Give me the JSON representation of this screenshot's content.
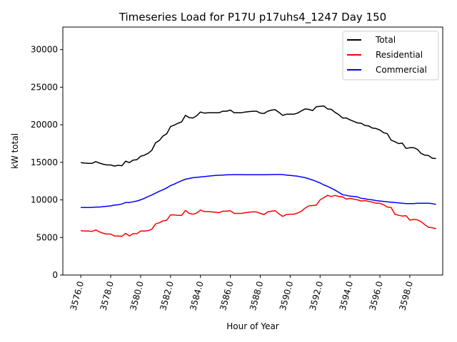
{
  "chart_data": {
    "type": "line",
    "title": "Timeseries Load for P17U p17uhs4_1247  Day 150",
    "xlabel": "Hour of Year",
    "ylabel": "kW total",
    "xlim": [
      3574.8,
      3600.2
    ],
    "ylim": [
      0,
      33000
    ],
    "xticks": [
      3576,
      3578,
      3580,
      3582,
      3584,
      3586,
      3588,
      3590,
      3592,
      3594,
      3596,
      3598
    ],
    "xtick_labels": [
      "3576.0",
      "3578.0",
      "3580.0",
      "3582.0",
      "3584.0",
      "3586.0",
      "3588.0",
      "3590.0",
      "3592.0",
      "3594.0",
      "3596.0",
      "3598.0"
    ],
    "yticks": [
      0,
      5000,
      10000,
      15000,
      20000,
      25000,
      30000
    ],
    "ytick_labels": [
      "0",
      "5000",
      "10000",
      "15000",
      "20000",
      "25000",
      "30000"
    ],
    "grid": false,
    "legend_position": "top-right",
    "x": [
      3576.0,
      3576.25,
      3576.5,
      3576.75,
      3577.0,
      3577.25,
      3577.5,
      3577.75,
      3578.0,
      3578.25,
      3578.5,
      3578.75,
      3579.0,
      3579.25,
      3579.5,
      3579.75,
      3580.0,
      3580.25,
      3580.5,
      3580.75,
      3581.0,
      3581.25,
      3581.5,
      3581.75,
      3582.0,
      3582.25,
      3582.5,
      3582.75,
      3583.0,
      3583.25,
      3583.5,
      3583.75,
      3584.0,
      3584.25,
      3584.5,
      3584.75,
      3585.0,
      3585.25,
      3585.5,
      3585.75,
      3586.0,
      3586.25,
      3586.5,
      3586.75,
      3587.0,
      3587.25,
      3587.5,
      3587.75,
      3588.0,
      3588.25,
      3588.5,
      3588.75,
      3589.0,
      3589.25,
      3589.5,
      3589.75,
      3590.0,
      3590.25,
      3590.5,
      3590.75,
      3591.0,
      3591.25,
      3591.5,
      3591.75,
      3592.0,
      3592.25,
      3592.5,
      3592.75,
      3593.0,
      3593.25,
      3593.5,
      3593.75,
      3594.0,
      3594.25,
      3594.5,
      3594.75,
      3595.0,
      3595.25,
      3595.5,
      3595.75,
      3596.0,
      3596.25,
      3596.5,
      3596.75,
      3597.0,
      3597.25,
      3597.5,
      3597.75,
      3598.0,
      3598.25,
      3598.5,
      3598.75,
      3599.0,
      3599.25,
      3599.5,
      3599.75
    ],
    "series": [
      {
        "name": "Total",
        "color": "#000000",
        "values": [
          14950,
          14900,
          14870,
          14860,
          15100,
          14900,
          14750,
          14650,
          14650,
          14500,
          14600,
          14550,
          15150,
          14950,
          15300,
          15350,
          15800,
          15950,
          16200,
          16600,
          17600,
          17900,
          18500,
          18800,
          19750,
          19950,
          20200,
          20400,
          21250,
          20950,
          20900,
          21200,
          21700,
          21550,
          21600,
          21600,
          21600,
          21600,
          21800,
          21800,
          21950,
          21600,
          21600,
          21600,
          21700,
          21750,
          21800,
          21800,
          21550,
          21500,
          21800,
          21950,
          22000,
          21650,
          21250,
          21400,
          21400,
          21400,
          21550,
          21850,
          22100,
          22050,
          21900,
          22400,
          22450,
          22500,
          22100,
          22050,
          21650,
          21350,
          20900,
          20900,
          20650,
          20450,
          20250,
          20200,
          19900,
          19850,
          19550,
          19500,
          19300,
          18950,
          18800,
          17950,
          17750,
          17500,
          17550,
          16850,
          16950,
          16950,
          16750,
          16200,
          15950,
          15900,
          15550,
          15500
        ]
      },
      {
        "name": "Residential",
        "color": "#ff0000",
        "values": [
          5900,
          5850,
          5850,
          5800,
          6000,
          5750,
          5550,
          5450,
          5450,
          5200,
          5200,
          5150,
          5550,
          5200,
          5500,
          5500,
          5850,
          5850,
          5900,
          6100,
          6800,
          6950,
          7200,
          7300,
          8000,
          8000,
          7950,
          7950,
          8600,
          8200,
          8100,
          8250,
          8650,
          8450,
          8450,
          8400,
          8350,
          8300,
          8500,
          8500,
          8550,
          8200,
          8200,
          8200,
          8300,
          8350,
          8400,
          8400,
          8200,
          8050,
          8400,
          8500,
          8550,
          8150,
          7800,
          8050,
          8100,
          8100,
          8250,
          8500,
          8900,
          9200,
          9250,
          9300,
          10000,
          10300,
          10600,
          10450,
          10600,
          10450,
          10400,
          10100,
          10200,
          10100,
          10000,
          9850,
          9900,
          9800,
          9700,
          9550,
          9550,
          9350,
          9050,
          9000,
          8100,
          7950,
          7850,
          7900,
          7300,
          7400,
          7350,
          7100,
          6700,
          6350,
          6300,
          6150
        ]
      },
      {
        "name": "Commercial",
        "color": "#0000ff",
        "values": [
          9000,
          8980,
          8980,
          9000,
          9050,
          9050,
          9100,
          9150,
          9200,
          9300,
          9350,
          9450,
          9650,
          9650,
          9750,
          9850,
          10000,
          10200,
          10450,
          10650,
          10900,
          11150,
          11350,
          11600,
          11900,
          12100,
          12350,
          12550,
          12750,
          12850,
          12950,
          13000,
          13050,
          13100,
          13150,
          13200,
          13250,
          13280,
          13300,
          13330,
          13350,
          13360,
          13360,
          13360,
          13350,
          13340,
          13340,
          13340,
          13350,
          13350,
          13360,
          13370,
          13380,
          13380,
          13370,
          13300,
          13250,
          13200,
          13150,
          13050,
          12950,
          12800,
          12650,
          12450,
          12250,
          12000,
          11800,
          11550,
          11300,
          11000,
          10700,
          10600,
          10500,
          10450,
          10400,
          10200,
          10150,
          10050,
          10000,
          9900,
          9850,
          9800,
          9750,
          9700,
          9650,
          9600,
          9550,
          9500,
          9500,
          9500,
          9550,
          9550,
          9550,
          9550,
          9500,
          9400
        ]
      }
    ]
  }
}
